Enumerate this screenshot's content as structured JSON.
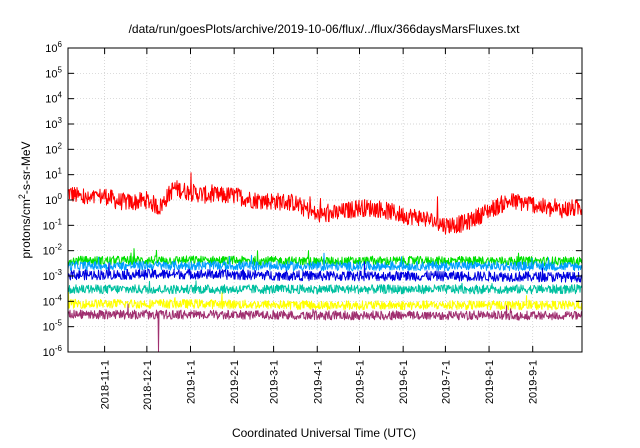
{
  "chart_data": {
    "type": "line",
    "title": "/data/run/goesPlots/archive/2019-10-06/flux/../flux/366daysMarsFluxes.txt",
    "xlabel": "Coordinated Universal Time (UTC)",
    "ylabel": {
      "prefix": "protons/cm",
      "superscript": "2",
      "suffix": "-s-sr-MeV"
    },
    "y_scale": "log",
    "ylim": [
      1e-06,
      1000000.0
    ],
    "xlim": [
      "2018-10-06",
      "2019-10-06"
    ],
    "grid": true,
    "legend": "none",
    "y_ticks": [
      {
        "base": "10",
        "exp": "-6",
        "value": 1e-06
      },
      {
        "base": "10",
        "exp": "-5",
        "value": 1e-05
      },
      {
        "base": "10",
        "exp": "-4",
        "value": 0.0001
      },
      {
        "base": "10",
        "exp": "-3",
        "value": 0.001
      },
      {
        "base": "10",
        "exp": "-2",
        "value": 0.01
      },
      {
        "base": "10",
        "exp": "-1",
        "value": 0.1
      },
      {
        "base": "10",
        "exp": "0",
        "value": 1
      },
      {
        "base": "10",
        "exp": "1",
        "value": 10
      },
      {
        "base": "10",
        "exp": "2",
        "value": 100
      },
      {
        "base": "10",
        "exp": "3",
        "value": 1000
      },
      {
        "base": "10",
        "exp": "4",
        "value": 10000
      },
      {
        "base": "10",
        "exp": "5",
        "value": 100000
      },
      {
        "base": "10",
        "exp": "6",
        "value": 1000000
      }
    ],
    "x_ticks": [
      {
        "label": "2018-11-1",
        "date": "2018-11-01"
      },
      {
        "label": "2018-12-1",
        "date": "2018-12-01"
      },
      {
        "label": "2019-1-1",
        "date": "2019-01-01"
      },
      {
        "label": "2019-2-1",
        "date": "2019-02-01"
      },
      {
        "label": "2019-3-1",
        "date": "2019-03-01"
      },
      {
        "label": "2019-4-1",
        "date": "2019-04-01"
      },
      {
        "label": "2019-5-1",
        "date": "2019-05-01"
      },
      {
        "label": "2019-6-1",
        "date": "2019-06-01"
      },
      {
        "label": "2019-7-1",
        "date": "2019-07-01"
      },
      {
        "label": "2019-8-1",
        "date": "2019-08-01"
      },
      {
        "label": "2019-9-1",
        "date": "2019-09-01"
      }
    ],
    "series": [
      {
        "color": "#ff0000",
        "x": [
          "2018-10-06",
          "2018-10-20",
          "2018-11-01",
          "2018-11-10",
          "2018-11-20",
          "2018-12-01",
          "2018-12-10",
          "2018-12-20",
          "2019-01-01",
          "2019-01-15",
          "2019-02-01",
          "2019-02-15",
          "2019-03-01",
          "2019-03-15",
          "2019-04-01",
          "2019-04-15",
          "2019-05-01",
          "2019-05-15",
          "2019-06-01",
          "2019-06-15",
          "2019-07-01",
          "2019-07-15",
          "2019-08-01",
          "2019-08-15",
          "2019-09-01",
          "2019-09-15",
          "2019-10-06"
        ],
        "values": [
          2.0,
          1.0,
          1.5,
          0.9,
          0.8,
          1.0,
          0.5,
          3.0,
          2.0,
          1.5,
          1.5,
          1.0,
          0.9,
          0.8,
          0.25,
          0.3,
          0.5,
          0.45,
          0.25,
          0.2,
          0.1,
          0.12,
          0.4,
          0.9,
          0.7,
          0.4,
          0.5
        ]
      },
      {
        "color": "#00e000",
        "x": [
          "2018-10-06",
          "2019-01-01",
          "2019-04-01",
          "2019-07-01",
          "2019-10-06"
        ],
        "values": [
          0.004,
          0.0042,
          0.0038,
          0.004,
          0.0038
        ]
      },
      {
        "color": "#00a0ff",
        "x": [
          "2018-10-06",
          "2019-01-01",
          "2019-04-01",
          "2019-07-01",
          "2019-10-06"
        ],
        "values": [
          0.0025,
          0.0026,
          0.0024,
          0.0025,
          0.0024
        ]
      },
      {
        "color": "#00c0a0",
        "x": [
          "2018-10-06",
          "2019-01-01",
          "2019-04-01",
          "2019-07-01",
          "2019-10-06"
        ],
        "values": [
          0.0003,
          0.0003,
          0.0003,
          0.0003,
          0.0003
        ]
      },
      {
        "color": "#0000e0",
        "x": [
          "2018-10-06",
          "2019-01-01",
          "2019-04-01",
          "2019-07-01",
          "2019-10-06"
        ],
        "values": [
          0.0011,
          0.0012,
          0.001,
          0.001,
          0.0009
        ]
      },
      {
        "color": "#ffff00",
        "x": [
          "2018-10-06",
          "2019-01-01",
          "2019-04-01",
          "2019-07-01",
          "2019-10-06"
        ],
        "values": [
          8e-05,
          8e-05,
          7e-05,
          7e-05,
          7e-05
        ]
      },
      {
        "color": "#a03070",
        "x": [
          "2018-10-06",
          "2019-01-01",
          "2019-04-01",
          "2019-07-01",
          "2019-10-06"
        ],
        "values": [
          3e-05,
          3e-05,
          2.8e-05,
          2.8e-05,
          2.7e-05
        ]
      }
    ]
  }
}
